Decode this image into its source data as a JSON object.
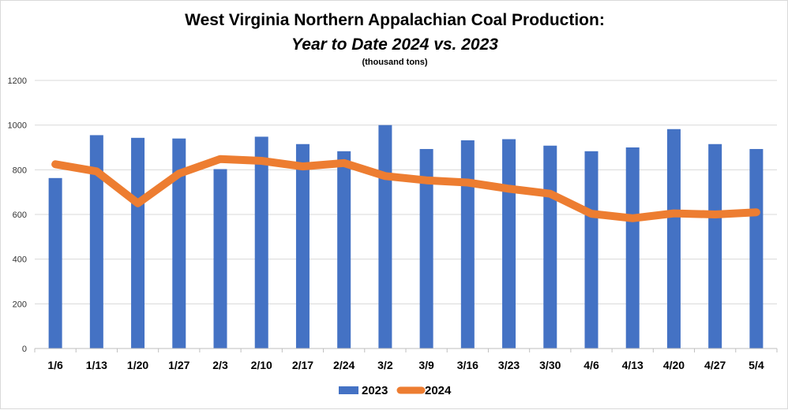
{
  "chart_data": {
    "type": "bar",
    "title": "West Virginia Northern Appalachian Coal Production:",
    "subtitle": "Year to Date 2024 vs. 2023",
    "units": "(thousand tons)",
    "categories": [
      "1/6",
      "1/13",
      "1/20",
      "1/27",
      "2/3",
      "2/10",
      "2/17",
      "2/24",
      "3/2",
      "3/9",
      "3/16",
      "3/23",
      "3/30",
      "4/6",
      "4/13",
      "4/20",
      "4/27",
      "5/4"
    ],
    "ylim": [
      0,
      1200
    ],
    "yticks": [
      "0",
      "200",
      "400",
      "600",
      "800",
      "1000",
      "1200"
    ],
    "grid": true,
    "legend_position": "bottom",
    "series": [
      {
        "name": "2023",
        "type": "bar",
        "color": "#4472c4",
        "values": [
          763,
          955,
          943,
          940,
          803,
          948,
          915,
          883,
          1000,
          893,
          932,
          937,
          908,
          883,
          900,
          982,
          915,
          893
        ]
      },
      {
        "name": "2024",
        "type": "line",
        "color": "#ed7d31",
        "values": [
          825,
          793,
          650,
          783,
          848,
          840,
          815,
          830,
          772,
          753,
          743,
          715,
          693,
          603,
          583,
          605,
          600,
          610
        ]
      }
    ]
  }
}
